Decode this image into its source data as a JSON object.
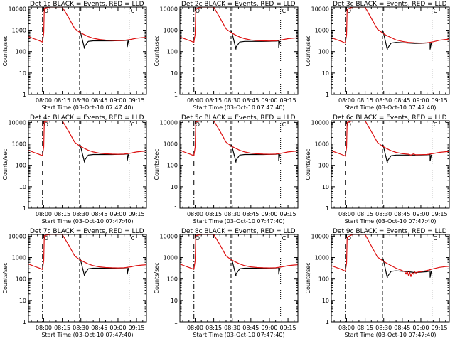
{
  "colors": {
    "events": "#000000",
    "lld": "#dd1111",
    "background": "#ffffff"
  },
  "shared": {
    "xlabel": "Start Time (03-Oct-10 07:47:40)",
    "ylabel": "Counts/sec",
    "x_ticks": [
      "08:00",
      "08:15",
      "08:30",
      "08:45",
      "09:00",
      "09:15"
    ],
    "y_ticks": [
      "1",
      "10",
      "100",
      "1000",
      "10000"
    ],
    "xlim": [
      "07:47:40",
      "09:23:00"
    ],
    "ylim": [
      1,
      12000
    ],
    "yscale": "log",
    "markers": [
      {
        "time": "07:59:00",
        "style": "dash-dot",
        "label": "O"
      },
      {
        "time": "08:29:00",
        "style": "dashed",
        "label": ""
      },
      {
        "time": "09:09:00",
        "style": "dotted",
        "label": "C"
      }
    ]
  },
  "chart_data": [
    {
      "type": "line",
      "title": "Det 1c BLACK = Events, RED = LLD",
      "ylabel": "Counts/sec",
      "xlabel": "Start Time (03-Oct-10 07:47:40)",
      "yscale": "log",
      "ylim": [
        1,
        12000
      ],
      "series": [
        {
          "name": "BLACK = Events",
          "color": "#000000",
          "x": [
            "08:29:30",
            "08:33:00",
            "08:33:00",
            "08:36:00",
            "08:40:00",
            "08:45:00",
            "08:50:00",
            "08:55:00",
            "09:00:00",
            "09:05:00",
            "09:07:30",
            "09:07:30",
            "09:08:30"
          ],
          "y": [
            900,
            140,
            170,
            300,
            320,
            320,
            320,
            320,
            325,
            330,
            340,
            170,
            330
          ]
        },
        {
          "name": "RED = LLD",
          "color": "#dd1111",
          "x": [
            "07:47:40",
            "07:52:00",
            "07:56:00",
            "07:59:00",
            "08:00:00",
            "08:00:30",
            "08:05:00",
            "08:10:00",
            "08:15:00",
            "08:20:00",
            "08:25:00",
            "08:29:00",
            "08:32:00",
            "08:36:00",
            "08:40:00",
            "08:45:00",
            "08:50:00",
            "08:55:00",
            "09:00:00",
            "09:05:00",
            "09:10:00",
            "09:15:00",
            "09:20:00",
            "09:23:00"
          ],
          "y": [
            500,
            400,
            330,
            280,
            700,
            10500,
            12000,
            12000,
            12000,
            4000,
            1200,
            800,
            650,
            500,
            420,
            370,
            345,
            335,
            330,
            335,
            370,
            420,
            450,
            460
          ]
        }
      ]
    },
    {
      "type": "line",
      "title": "Det 2c BLACK = Events, RED = LLD",
      "ylabel": "Counts/sec",
      "xlabel": "Start Time (03-Oct-10 07:47:40)",
      "yscale": "log",
      "ylim": [
        1,
        12000
      ],
      "series": [
        {
          "name": "BLACK = Events",
          "color": "#000000",
          "x": [
            "08:29:30",
            "08:33:00",
            "08:33:00",
            "08:36:00",
            "08:40:00",
            "08:45:00",
            "08:50:00",
            "08:55:00",
            "09:00:00",
            "09:05:00",
            "09:07:30",
            "09:07:30",
            "09:08:30"
          ],
          "y": [
            900,
            130,
            160,
            280,
            300,
            300,
            300,
            300,
            305,
            310,
            320,
            160,
            310
          ]
        },
        {
          "name": "RED = LLD",
          "color": "#dd1111",
          "x": [
            "07:47:40",
            "07:52:00",
            "07:56:00",
            "07:59:00",
            "08:00:00",
            "08:00:30",
            "08:05:00",
            "08:10:00",
            "08:15:00",
            "08:20:00",
            "08:25:00",
            "08:29:00",
            "08:32:00",
            "08:36:00",
            "08:40:00",
            "08:45:00",
            "08:50:00",
            "08:55:00",
            "09:00:00",
            "09:05:00",
            "09:10:00",
            "09:15:00",
            "09:20:00",
            "09:23:00"
          ],
          "y": [
            480,
            390,
            320,
            270,
            650,
            10000,
            12000,
            12000,
            12000,
            3800,
            1150,
            780,
            620,
            480,
            400,
            350,
            330,
            320,
            315,
            320,
            355,
            400,
            430,
            440
          ]
        }
      ]
    },
    {
      "type": "line",
      "title": "Det 3c BLACK = Events, RED = LLD",
      "ylabel": "Counts/sec",
      "xlabel": "Start Time (03-Oct-10 07:47:40)",
      "yscale": "log",
      "ylim": [
        1,
        12000
      ],
      "series": [
        {
          "name": "BLACK = Events",
          "color": "#000000",
          "x": [
            "08:29:30",
            "08:33:00",
            "08:33:00",
            "08:36:00",
            "08:40:00",
            "08:45:00",
            "08:50:00",
            "08:55:00",
            "09:00:00",
            "09:05:00",
            "09:07:30",
            "09:07:30",
            "09:08:30"
          ],
          "y": [
            900,
            120,
            140,
            250,
            270,
            260,
            250,
            240,
            245,
            255,
            265,
            130,
            260
          ]
        },
        {
          "name": "RED = LLD",
          "color": "#dd1111",
          "x": [
            "07:47:40",
            "07:52:00",
            "07:56:00",
            "07:59:00",
            "08:00:00",
            "08:00:30",
            "08:05:00",
            "08:10:00",
            "08:15:00",
            "08:20:00",
            "08:25:00",
            "08:29:00",
            "08:32:00",
            "08:36:00",
            "08:40:00",
            "08:45:00",
            "08:50:00",
            "08:55:00",
            "09:00:00",
            "09:05:00",
            "09:10:00",
            "09:15:00",
            "09:20:00",
            "09:23:00"
          ],
          "y": [
            450,
            360,
            300,
            250,
            600,
            9500,
            12000,
            12000,
            12000,
            3600,
            1100,
            750,
            580,
            450,
            350,
            300,
            270,
            255,
            250,
            255,
            290,
            340,
            370,
            380
          ]
        }
      ]
    },
    {
      "type": "line",
      "title": "Det 4c BLACK = Events, RED = LLD",
      "ylabel": "Counts/sec",
      "xlabel": "Start Time (03-Oct-10 07:47:40)",
      "yscale": "log",
      "ylim": [
        1,
        12000
      ],
      "series": [
        {
          "name": "BLACK = Events",
          "color": "#000000",
          "x": [
            "08:29:30",
            "08:33:00",
            "08:33:00",
            "08:36:00",
            "08:40:00",
            "08:45:00",
            "08:50:00",
            "08:55:00",
            "09:00:00",
            "09:05:00",
            "09:07:30",
            "09:07:30",
            "09:08:30"
          ],
          "y": [
            900,
            140,
            170,
            300,
            320,
            320,
            320,
            320,
            325,
            330,
            340,
            170,
            330
          ]
        },
        {
          "name": "RED = LLD",
          "color": "#dd1111",
          "x": [
            "07:47:40",
            "07:52:00",
            "07:56:00",
            "07:59:00",
            "08:00:00",
            "08:00:30",
            "08:05:00",
            "08:10:00",
            "08:15:00",
            "08:20:00",
            "08:25:00",
            "08:29:00",
            "08:32:00",
            "08:36:00",
            "08:40:00",
            "08:45:00",
            "08:50:00",
            "08:55:00",
            "09:00:00",
            "09:05:00",
            "09:10:00",
            "09:15:00",
            "09:20:00",
            "09:23:00"
          ],
          "y": [
            500,
            400,
            330,
            280,
            700,
            10500,
            12000,
            12000,
            12000,
            4000,
            1200,
            800,
            650,
            500,
            420,
            370,
            345,
            335,
            330,
            335,
            370,
            420,
            450,
            460
          ]
        }
      ]
    },
    {
      "type": "line",
      "title": "Det 5c BLACK = Events, RED = LLD",
      "ylabel": "Counts/sec",
      "xlabel": "Start Time (03-Oct-10 07:47:40)",
      "yscale": "log",
      "ylim": [
        1,
        12000
      ],
      "series": [
        {
          "name": "BLACK = Events",
          "color": "#000000",
          "x": [
            "08:29:30",
            "08:33:00",
            "08:33:00",
            "08:36:00",
            "08:40:00",
            "08:45:00",
            "08:50:00",
            "08:55:00",
            "09:00:00",
            "09:05:00",
            "09:07:30",
            "09:07:30",
            "09:08:30"
          ],
          "y": [
            900,
            140,
            170,
            300,
            320,
            320,
            320,
            320,
            325,
            330,
            340,
            170,
            330
          ]
        },
        {
          "name": "RED = LLD",
          "color": "#dd1111",
          "x": [
            "07:47:40",
            "07:52:00",
            "07:56:00",
            "07:59:00",
            "08:00:00",
            "08:00:30",
            "08:05:00",
            "08:10:00",
            "08:15:00",
            "08:20:00",
            "08:25:00",
            "08:29:00",
            "08:32:00",
            "08:36:00",
            "08:40:00",
            "08:45:00",
            "08:50:00",
            "08:55:00",
            "09:00:00",
            "09:05:00",
            "09:10:00",
            "09:15:00",
            "09:20:00",
            "09:23:00"
          ],
          "y": [
            500,
            400,
            330,
            280,
            700,
            10500,
            12000,
            12000,
            12000,
            4000,
            1200,
            800,
            650,
            500,
            420,
            370,
            345,
            335,
            330,
            335,
            370,
            420,
            450,
            460
          ]
        }
      ]
    },
    {
      "type": "line",
      "title": "Det 6c BLACK = Events, RED = LLD",
      "ylabel": "Counts/sec",
      "xlabel": "Start Time (03-Oct-10 07:47:40)",
      "yscale": "log",
      "ylim": [
        1,
        12000
      ],
      "series": [
        {
          "name": "BLACK = Events",
          "color": "#000000",
          "x": [
            "08:29:30",
            "08:33:00",
            "08:33:00",
            "08:36:00",
            "08:40:00",
            "08:45:00",
            "08:50:00",
            "08:55:00",
            "09:00:00",
            "09:05:00",
            "09:07:30",
            "09:07:30",
            "09:08:30"
          ],
          "y": [
            900,
            130,
            160,
            280,
            300,
            300,
            300,
            300,
            305,
            310,
            320,
            160,
            310
          ]
        },
        {
          "name": "RED = LLD",
          "color": "#dd1111",
          "x": [
            "07:47:40",
            "07:52:00",
            "07:56:00",
            "07:59:00",
            "08:00:00",
            "08:00:30",
            "08:05:00",
            "08:10:00",
            "08:15:00",
            "08:20:00",
            "08:25:00",
            "08:29:00",
            "08:32:00",
            "08:36:00",
            "08:40:00",
            "08:45:00",
            "08:50:00",
            "08:52:00",
            "08:54:00",
            "08:56:00",
            "09:00:00",
            "09:05:00",
            "09:10:00",
            "09:15:00",
            "09:20:00",
            "09:23:00"
          ],
          "y": [
            480,
            390,
            320,
            270,
            650,
            10000,
            12000,
            12000,
            12000,
            3800,
            1150,
            780,
            620,
            480,
            400,
            350,
            330,
            300,
            340,
            310,
            315,
            320,
            355,
            400,
            430,
            440
          ]
        }
      ]
    },
    {
      "type": "line",
      "title": "Det 7c BLACK = Events, RED = LLD",
      "ylabel": "Counts/sec",
      "xlabel": "Start Time (03-Oct-10 07:47:40)",
      "yscale": "log",
      "ylim": [
        1,
        12000
      ],
      "series": [
        {
          "name": "BLACK = Events",
          "color": "#000000",
          "x": [
            "08:29:30",
            "08:33:00",
            "08:33:00",
            "08:36:00",
            "08:40:00",
            "08:45:00",
            "08:50:00",
            "08:55:00",
            "09:00:00",
            "09:05:00",
            "09:07:30",
            "09:07:30",
            "09:08:30"
          ],
          "y": [
            900,
            140,
            170,
            300,
            320,
            320,
            320,
            320,
            325,
            330,
            340,
            170,
            330
          ]
        },
        {
          "name": "RED = LLD",
          "color": "#dd1111",
          "x": [
            "07:47:40",
            "07:52:00",
            "07:56:00",
            "07:59:00",
            "08:00:00",
            "08:00:30",
            "08:05:00",
            "08:10:00",
            "08:15:00",
            "08:20:00",
            "08:25:00",
            "08:29:00",
            "08:32:00",
            "08:36:00",
            "08:40:00",
            "08:45:00",
            "08:50:00",
            "08:55:00",
            "09:00:00",
            "09:05:00",
            "09:10:00",
            "09:15:00",
            "09:20:00",
            "09:23:00"
          ],
          "y": [
            500,
            400,
            330,
            280,
            700,
            10500,
            12000,
            12000,
            12000,
            4000,
            1200,
            800,
            650,
            500,
            420,
            370,
            345,
            335,
            330,
            335,
            370,
            420,
            450,
            460
          ]
        }
      ]
    },
    {
      "type": "line",
      "title": "Det 8c BLACK = Events, RED = LLD",
      "ylabel": "Counts/sec",
      "xlabel": "Start Time (03-Oct-10 07:47:40)",
      "yscale": "log",
      "ylim": [
        1,
        12000
      ],
      "series": [
        {
          "name": "BLACK = Events",
          "color": "#000000",
          "x": [
            "08:29:30",
            "08:33:00",
            "08:33:00",
            "08:36:00",
            "08:40:00",
            "08:45:00",
            "08:50:00",
            "08:55:00",
            "09:00:00",
            "09:05:00",
            "09:07:30",
            "09:07:30",
            "09:08:30"
          ],
          "y": [
            900,
            140,
            170,
            300,
            320,
            320,
            320,
            320,
            325,
            330,
            340,
            170,
            330
          ]
        },
        {
          "name": "RED = LLD",
          "color": "#dd1111",
          "x": [
            "07:47:40",
            "07:52:00",
            "07:56:00",
            "07:59:00",
            "08:00:00",
            "08:00:30",
            "08:05:00",
            "08:10:00",
            "08:15:00",
            "08:20:00",
            "08:25:00",
            "08:29:00",
            "08:32:00",
            "08:36:00",
            "08:40:00",
            "08:45:00",
            "08:50:00",
            "08:55:00",
            "09:00:00",
            "09:05:00",
            "09:10:00",
            "09:15:00",
            "09:20:00",
            "09:23:00"
          ],
          "y": [
            500,
            400,
            330,
            280,
            700,
            10500,
            12000,
            12000,
            12000,
            4000,
            1200,
            800,
            650,
            500,
            420,
            370,
            345,
            335,
            330,
            335,
            370,
            420,
            450,
            460
          ]
        }
      ]
    },
    {
      "type": "line",
      "title": "Det 9c BLACK = Events, RED = LLD",
      "ylabel": "Counts/sec",
      "xlabel": "Start Time (03-Oct-10 07:47:40)",
      "yscale": "log",
      "ylim": [
        1,
        12000
      ],
      "series": [
        {
          "name": "BLACK = Events",
          "color": "#000000",
          "x": [
            "08:29:30",
            "08:33:00",
            "08:33:00",
            "08:36:00",
            "08:40:00",
            "08:45:00",
            "08:50:00",
            "08:55:00",
            "09:00:00",
            "09:05:00",
            "09:07:30",
            "09:07:30",
            "09:08:30"
          ],
          "y": [
            900,
            110,
            130,
            230,
            240,
            230,
            220,
            200,
            210,
            220,
            240,
            120,
            230
          ]
        },
        {
          "name": "RED = LLD",
          "color": "#dd1111",
          "x": [
            "07:47:40",
            "07:52:00",
            "07:56:00",
            "07:59:00",
            "08:00:00",
            "08:00:30",
            "08:05:00",
            "08:10:00",
            "08:15:00",
            "08:20:00",
            "08:25:00",
            "08:29:00",
            "08:32:00",
            "08:36:00",
            "08:40:00",
            "08:44:00",
            "08:47:00",
            "08:48:00",
            "08:49:00",
            "08:50:00",
            "08:51:00",
            "08:52:00",
            "08:53:00",
            "08:54:00",
            "08:55:00",
            "08:56:00",
            "08:58:00",
            "09:00:00",
            "09:05:00",
            "09:10:00",
            "09:15:00",
            "09:20:00",
            "09:23:00"
          ],
          "y": [
            420,
            340,
            280,
            230,
            550,
            9000,
            12000,
            12000,
            12000,
            3500,
            1050,
            720,
            560,
            420,
            320,
            260,
            220,
            170,
            230,
            150,
            210,
            130,
            200,
            170,
            220,
            190,
            215,
            220,
            250,
            300,
            350,
            380,
            390
          ]
        }
      ]
    }
  ]
}
